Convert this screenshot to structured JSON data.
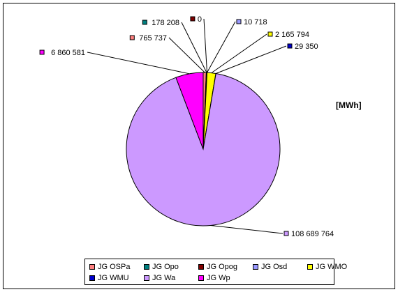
{
  "chart_data": {
    "type": "pie",
    "unit_label": "[MWh]",
    "slices": [
      {
        "name": "JG OSPa",
        "value": 765737,
        "label": "765 737",
        "color": "#FF8080"
      },
      {
        "name": "JG Opo",
        "value": 178208,
        "label": "178 208",
        "color": "#008080"
      },
      {
        "name": "JG Opog",
        "value": 0,
        "label": "0",
        "color": "#800000"
      },
      {
        "name": "JG Osd",
        "value": 10718,
        "label": "10 718",
        "color": "#9999FF"
      },
      {
        "name": "JG WMO",
        "value": 2165794,
        "label": "2 165 794",
        "color": "#FFFF00"
      },
      {
        "name": "JG WMU",
        "value": 29350,
        "label": "29 350",
        "color": "#0000CC"
      },
      {
        "name": "JG Wa",
        "value": 108689764,
        "label": "108 689 764",
        "color": "#CC99FF"
      },
      {
        "name": "JG Wp",
        "value": 6860581,
        "label": "6 860 581",
        "color": "#FF00FF"
      }
    ]
  }
}
